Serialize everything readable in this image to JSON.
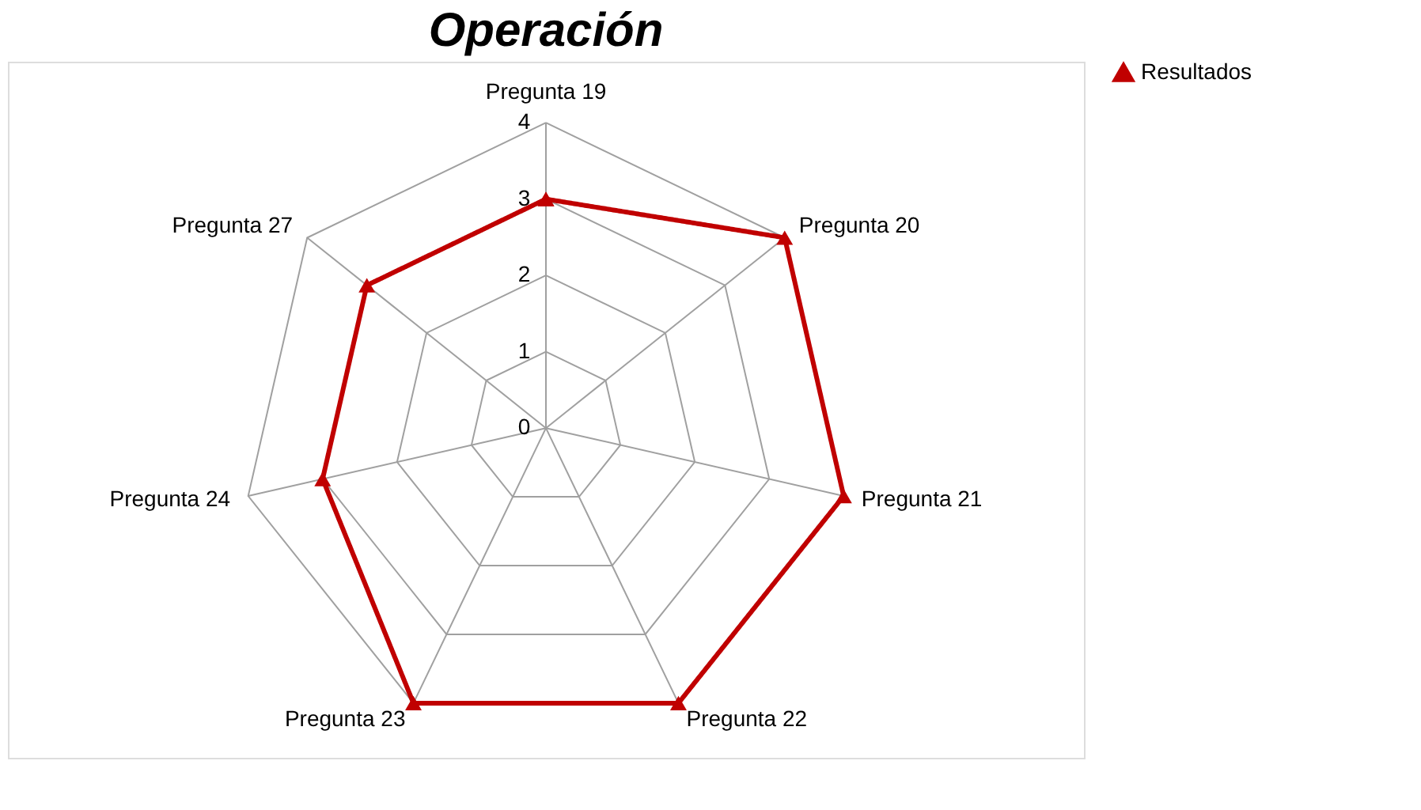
{
  "chart_data": {
    "type": "radar",
    "title": "Operación",
    "categories": [
      "Pregunta 19",
      "Pregunta 20",
      "Pregunta 21",
      "Pregunta 22",
      "Pregunta 23",
      "Pregunta 24",
      "Pregunta 27"
    ],
    "series": [
      {
        "name": "Resultados",
        "color": "#c00000",
        "values": [
          3,
          4,
          4,
          4,
          4,
          3,
          3
        ]
      }
    ],
    "ylim": [
      0,
      4
    ],
    "yticks": [
      0,
      1,
      2,
      3,
      4
    ],
    "grid": true,
    "legend": "right",
    "marker": "triangle",
    "line_style": "solid"
  }
}
